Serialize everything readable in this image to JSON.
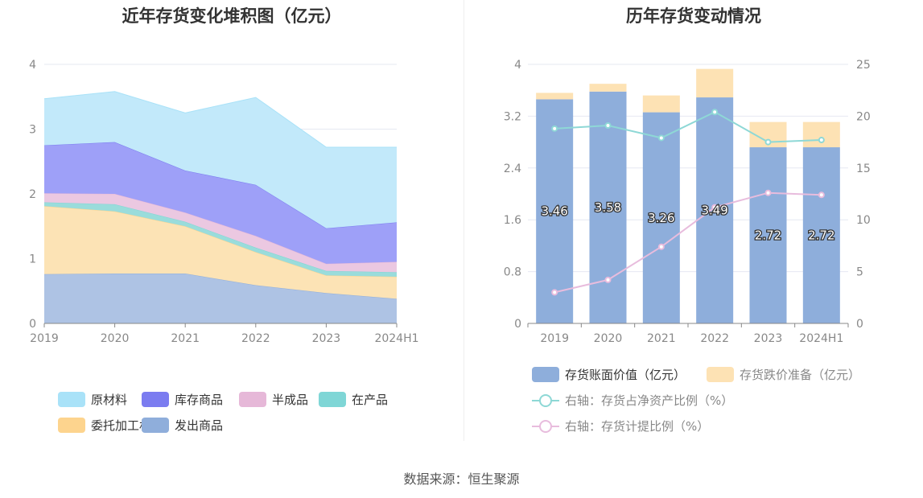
{
  "source_text": "数据来源：恒生聚源",
  "chart_data": [
    {
      "type": "area",
      "stacked": true,
      "title": "近年存货变化堆积图（亿元）",
      "categories": [
        "2019",
        "2020",
        "2021",
        "2022",
        "2023",
        "2024H1"
      ],
      "ylim": [
        0,
        4
      ],
      "yticks": [
        "0",
        "1",
        "2",
        "3",
        "4"
      ],
      "grid": true,
      "legend_position": "bottom",
      "series": [
        {
          "name": "发出商品",
          "color": "#AEC3E4",
          "legend_color": "#8FAEDB",
          "values": [
            0.76,
            0.77,
            0.77,
            0.59,
            0.47,
            0.38
          ]
        },
        {
          "name": "委托加工材料",
          "color": "#FCE3B5",
          "legend_color": "#FDD48E",
          "values": [
            1.05,
            0.96,
            0.73,
            0.51,
            0.27,
            0.34
          ]
        },
        {
          "name": "在产品",
          "color": "#9ADCDB",
          "legend_color": "#7FD6D6",
          "values": [
            0.06,
            0.11,
            0.07,
            0.07,
            0.07,
            0.07
          ]
        },
        {
          "name": "半成品",
          "color": "#EBC8E1",
          "legend_color": "#E6B8D8",
          "values": [
            0.14,
            0.16,
            0.14,
            0.18,
            0.11,
            0.16
          ]
        },
        {
          "name": "库存商品",
          "color": "#9EA0F8",
          "legend_color": "#7B7CF0",
          "values": [
            0.74,
            0.8,
            0.65,
            0.79,
            0.55,
            0.61
          ]
        },
        {
          "name": "原材料",
          "color": "#C2E9FA",
          "legend_color": "#A9E2F8",
          "values": [
            0.72,
            0.78,
            0.89,
            1.35,
            1.25,
            1.16
          ]
        }
      ],
      "legend_order": [
        "原材料",
        "库存商品",
        "半成品",
        "在产品",
        "委托加工材料",
        "发出商品"
      ]
    },
    {
      "type": "bar",
      "stacked": true,
      "title": "历年存货变动情况",
      "categories": [
        "2019",
        "2020",
        "2021",
        "2022",
        "2023",
        "2024H1"
      ],
      "ylim": [
        0,
        4
      ],
      "yticks": [
        "0",
        "0.8",
        "1.6",
        "2.4",
        "3.2",
        "4"
      ],
      "y2lim": [
        0,
        25
      ],
      "y2ticks": [
        "0",
        "5",
        "10",
        "15",
        "20",
        "25"
      ],
      "grid": true,
      "legend_position": "bottom",
      "series": [
        {
          "name": "存货账面价值（亿元）",
          "kind": "bar",
          "color": "#8EAEDB",
          "values": [
            3.46,
            3.58,
            3.26,
            3.49,
            2.72,
            2.72
          ],
          "labels": [
            "3.46",
            "3.58",
            "3.26",
            "3.49",
            "2.72",
            "2.72"
          ]
        },
        {
          "name": "存货跌价准备（亿元）",
          "kind": "bar",
          "color": "#FDE2B4",
          "values": [
            0.1,
            0.12,
            0.26,
            0.44,
            0.39,
            0.39
          ]
        },
        {
          "name": "右轴：存货占净资产比例（%）",
          "kind": "line",
          "axis": "right",
          "color": "#8ED8D6",
          "values": [
            18.8,
            19.1,
            17.9,
            20.4,
            17.5,
            17.7
          ]
        },
        {
          "name": "右轴：存货计提比例（%）",
          "kind": "line",
          "axis": "right",
          "color": "#E8BCDD",
          "values": [
            3.0,
            4.2,
            7.4,
            11.2,
            12.6,
            12.4
          ]
        }
      ]
    }
  ]
}
